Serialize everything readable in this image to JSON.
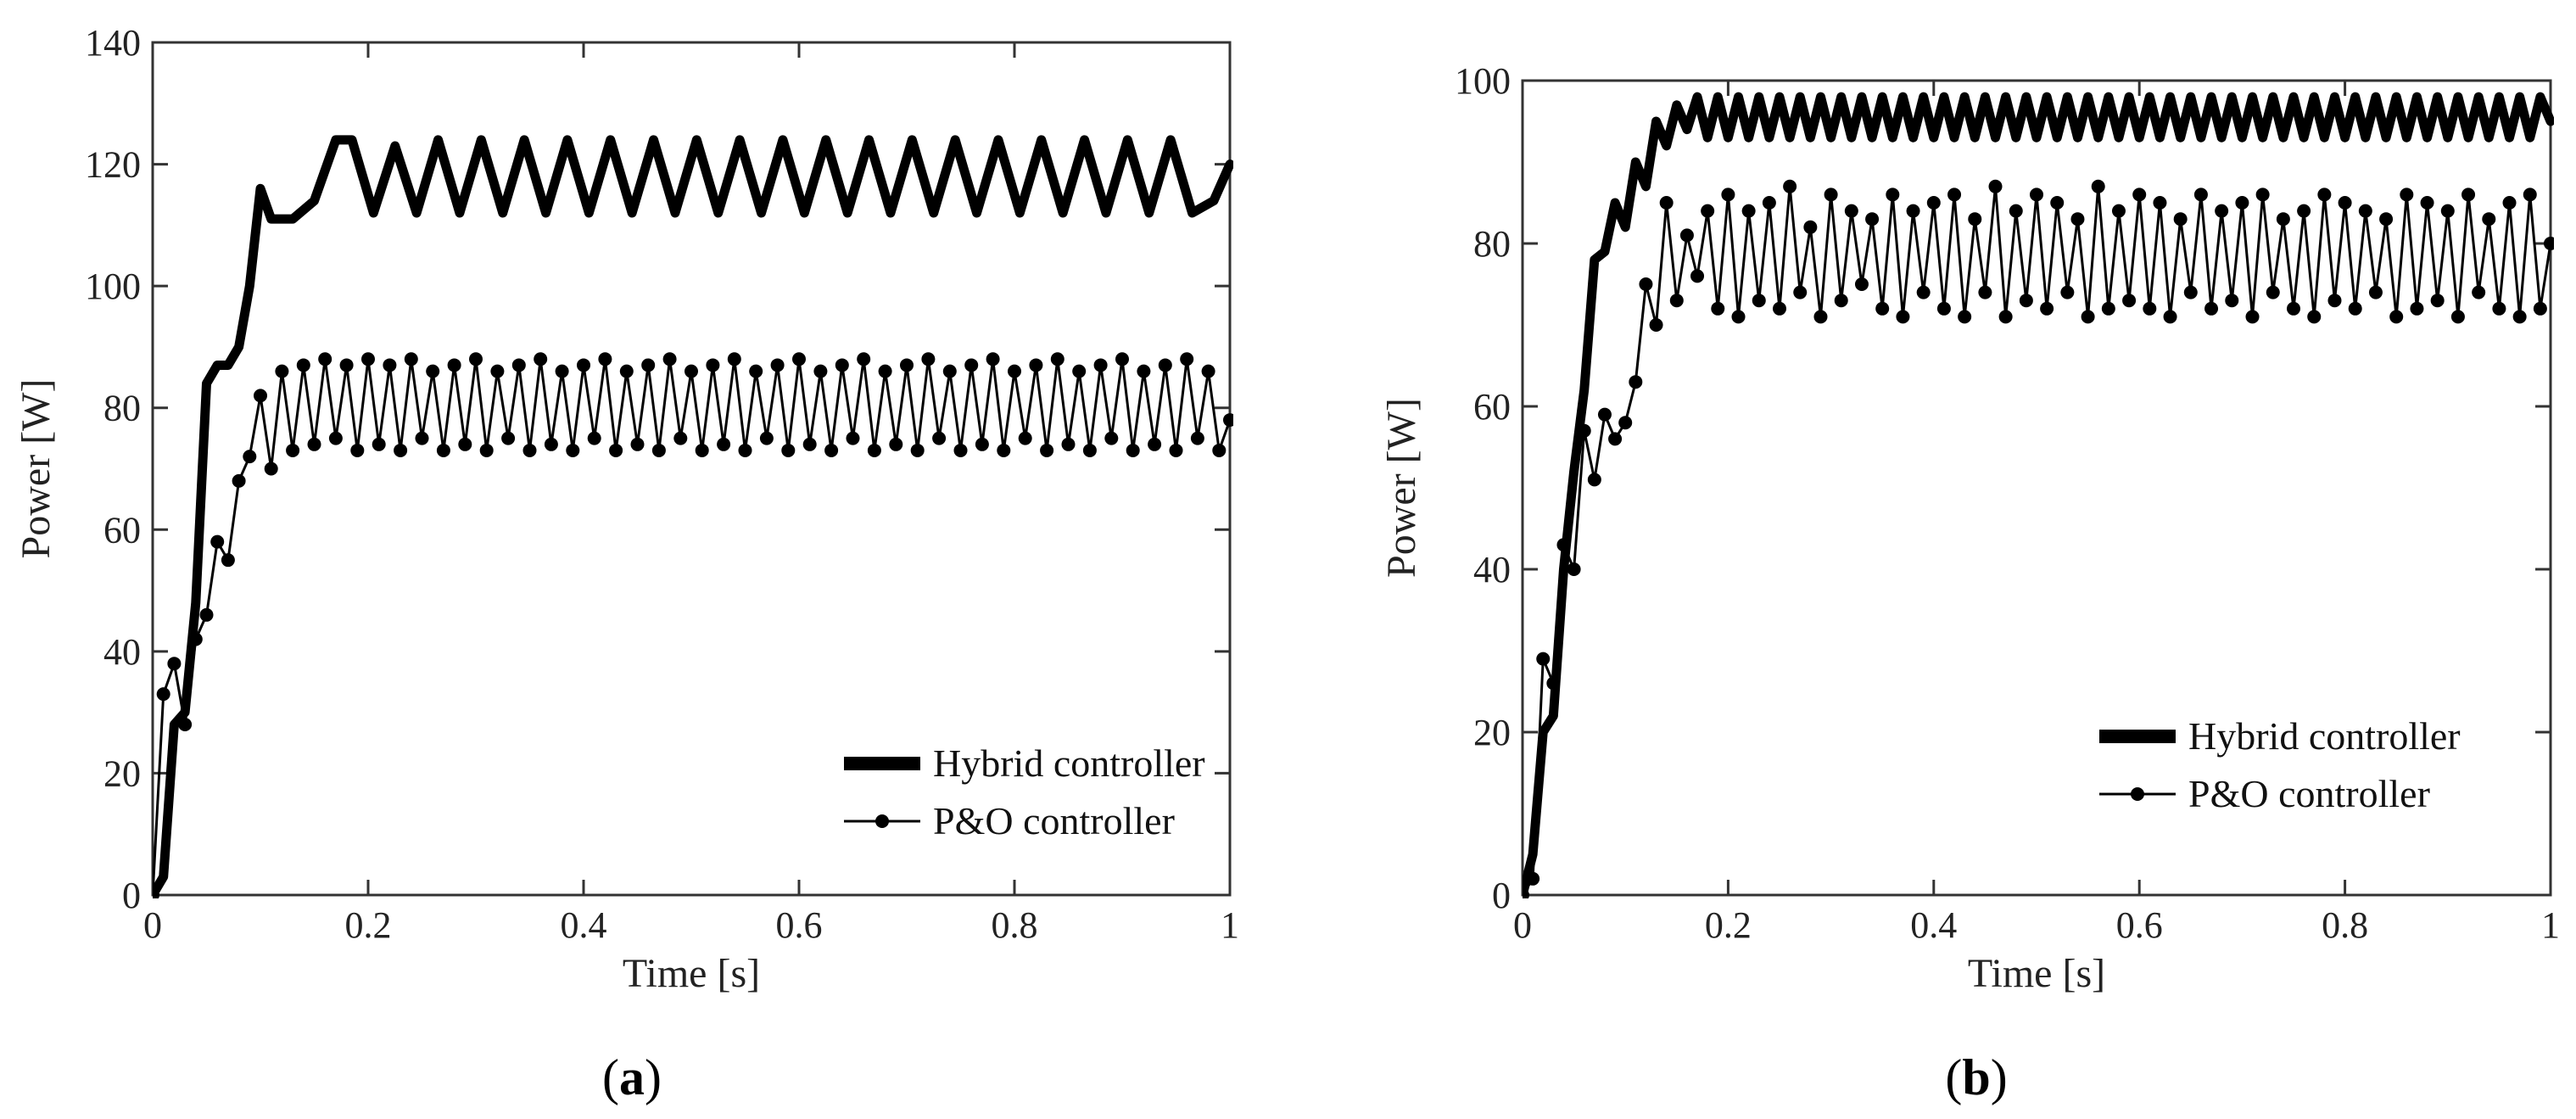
{
  "panels": [
    {
      "label_open": "(",
      "label_letter": "a",
      "label_close": ")",
      "chart_data": {
        "type": "line",
        "title": "",
        "xlabel": "Time [s]",
        "ylabel": "Power [W]",
        "xlim": [
          0,
          1
        ],
        "ylim": [
          0,
          140
        ],
        "xticks": [
          0,
          0.2,
          0.4,
          0.6,
          0.8,
          1
        ],
        "xtick_labels": [
          "0",
          "0.2",
          "0.4",
          "0.6",
          "0.8",
          "1"
        ],
        "yticks": [
          0,
          20,
          40,
          60,
          80,
          100,
          120,
          140
        ],
        "ytick_labels": [
          "0",
          "20",
          "40",
          "60",
          "80",
          "100",
          "120",
          "140"
        ],
        "grid": false,
        "legend_position": "lower-right",
        "series": [
          {
            "name": "Hybrid controller",
            "style": "thick",
            "x": [
              0,
              0.01,
              0.02,
              0.03,
              0.04,
              0.05,
              0.06,
              0.07,
              0.08,
              0.09,
              0.1,
              0.11,
              0.13,
              0.15,
              0.17,
              0.185,
              0.205,
              0.225,
              0.245,
              0.265,
              0.285,
              0.305,
              0.325,
              0.345,
              0.365,
              0.385,
              0.405,
              0.425,
              0.445,
              0.465,
              0.485,
              0.505,
              0.525,
              0.545,
              0.565,
              0.585,
              0.605,
              0.625,
              0.645,
              0.665,
              0.685,
              0.705,
              0.725,
              0.745,
              0.765,
              0.785,
              0.805,
              0.825,
              0.845,
              0.865,
              0.885,
              0.905,
              0.925,
              0.945,
              0.965,
              0.985,
              1.0
            ],
            "y": [
              0,
              3,
              28,
              30,
              48,
              84,
              87,
              87,
              90,
              100,
              116,
              111,
              111,
              114,
              124,
              124,
              112,
              123,
              112,
              124,
              112,
              124,
              112,
              124,
              112,
              124,
              112,
              124,
              112,
              124,
              112,
              124,
              112,
              124,
              112,
              124,
              112,
              124,
              112,
              124,
              112,
              124,
              112,
              124,
              112,
              124,
              112,
              124,
              112,
              124,
              112,
              124,
              112,
              124,
              112,
              114,
              120
            ]
          },
          {
            "name": "P&O controller",
            "style": "dotted-marker",
            "x": [
              0,
              0.01,
              0.02,
              0.03,
              0.04,
              0.05,
              0.06,
              0.07,
              0.08,
              0.09,
              0.1,
              0.11,
              0.12,
              0.13,
              0.14,
              0.15,
              0.16,
              0.17,
              0.18,
              0.19,
              0.2,
              0.21,
              0.22,
              0.23,
              0.24,
              0.25,
              0.26,
              0.27,
              0.28,
              0.29,
              0.3,
              0.31,
              0.32,
              0.33,
              0.34,
              0.35,
              0.36,
              0.37,
              0.38,
              0.39,
              0.4,
              0.41,
              0.42,
              0.43,
              0.44,
              0.45,
              0.46,
              0.47,
              0.48,
              0.49,
              0.5,
              0.51,
              0.52,
              0.53,
              0.54,
              0.55,
              0.56,
              0.57,
              0.58,
              0.59,
              0.6,
              0.61,
              0.62,
              0.63,
              0.64,
              0.65,
              0.66,
              0.67,
              0.68,
              0.69,
              0.7,
              0.71,
              0.72,
              0.73,
              0.74,
              0.75,
              0.76,
              0.77,
              0.78,
              0.79,
              0.8,
              0.81,
              0.82,
              0.83,
              0.84,
              0.85,
              0.86,
              0.87,
              0.88,
              0.89,
              0.9,
              0.91,
              0.92,
              0.93,
              0.94,
              0.95,
              0.96,
              0.97,
              0.98,
              0.99,
              1.0
            ],
            "y": [
              0,
              33,
              38,
              28,
              42,
              46,
              58,
              55,
              68,
              72,
              82,
              70,
              86,
              73,
              87,
              74,
              88,
              75,
              87,
              73,
              88,
              74,
              87,
              73,
              88,
              75,
              86,
              73,
              87,
              74,
              88,
              73,
              86,
              75,
              87,
              73,
              88,
              74,
              86,
              73,
              87,
              75,
              88,
              73,
              86,
              74,
              87,
              73,
              88,
              75,
              86,
              73,
              87,
              74,
              88,
              73,
              86,
              75,
              87,
              73,
              88,
              74,
              86,
              73,
              87,
              75,
              88,
              73,
              86,
              74,
              87,
              73,
              88,
              75,
              86,
              73,
              87,
              74,
              88,
              73,
              86,
              75,
              87,
              73,
              88,
              74,
              86,
              73,
              87,
              75,
              88,
              73,
              86,
              74,
              87,
              73,
              88,
              75,
              86,
              73,
              78
            ]
          }
        ]
      }
    },
    {
      "label_open": "(",
      "label_letter": "b",
      "label_close": ")",
      "chart_data": {
        "type": "line",
        "title": "",
        "xlabel": "Time [s]",
        "ylabel": "Power [W]",
        "xlim": [
          0,
          1
        ],
        "ylim": [
          0,
          100
        ],
        "xticks": [
          0,
          0.2,
          0.4,
          0.6,
          0.8,
          1
        ],
        "xtick_labels": [
          "0",
          "0.2",
          "0.4",
          "0.6",
          "0.8",
          "1"
        ],
        "yticks": [
          0,
          20,
          40,
          60,
          80,
          100
        ],
        "ytick_labels": [
          "0",
          "20",
          "40",
          "60",
          "80",
          "100"
        ],
        "grid": false,
        "legend_position": "lower-right",
        "series": [
          {
            "name": "Hybrid controller",
            "style": "thick",
            "x": [
              0,
              0.01,
              0.02,
              0.03,
              0.04,
              0.05,
              0.06,
              0.07,
              0.08,
              0.09,
              0.1,
              0.11,
              0.12,
              0.13,
              0.14,
              0.15,
              0.16,
              0.17,
              0.18,
              0.19,
              0.2,
              0.21,
              0.22,
              0.23,
              0.24,
              0.25,
              0.26,
              0.27,
              0.28,
              0.29,
              0.3,
              0.31,
              0.32,
              0.33,
              0.34,
              0.35,
              0.36,
              0.37,
              0.38,
              0.39,
              0.4,
              0.41,
              0.42,
              0.43,
              0.44,
              0.45,
              0.46,
              0.47,
              0.48,
              0.49,
              0.5,
              0.51,
              0.52,
              0.53,
              0.54,
              0.55,
              0.56,
              0.57,
              0.58,
              0.59,
              0.6,
              0.61,
              0.62,
              0.63,
              0.64,
              0.65,
              0.66,
              0.67,
              0.68,
              0.69,
              0.7,
              0.71,
              0.72,
              0.73,
              0.74,
              0.75,
              0.76,
              0.77,
              0.78,
              0.79,
              0.8,
              0.81,
              0.82,
              0.83,
              0.84,
              0.85,
              0.86,
              0.87,
              0.88,
              0.89,
              0.9,
              0.91,
              0.92,
              0.93,
              0.94,
              0.95,
              0.96,
              0.97,
              0.98,
              0.99,
              1.0
            ],
            "y": [
              0,
              5,
              20,
              22,
              40,
              52,
              62,
              78,
              79,
              85,
              82,
              90,
              87,
              95,
              92,
              97,
              94,
              98,
              93,
              98,
              93,
              98,
              93,
              98,
              93,
              98,
              93,
              98,
              93,
              98,
              93,
              98,
              93,
              98,
              93,
              98,
              93,
              98,
              93,
              98,
              93,
              98,
              93,
              98,
              93,
              98,
              93,
              98,
              93,
              98,
              93,
              98,
              93,
              98,
              93,
              98,
              93,
              98,
              93,
              98,
              93,
              98,
              93,
              98,
              93,
              98,
              93,
              98,
              93,
              98,
              93,
              98,
              93,
              98,
              93,
              98,
              93,
              98,
              93,
              98,
              93,
              98,
              93,
              98,
              93,
              98,
              93,
              98,
              93,
              98,
              93,
              98,
              93,
              98,
              93,
              98,
              93,
              98,
              93,
              98,
              95
            ]
          },
          {
            "name": "P&O controller",
            "style": "dotted-marker",
            "x": [
              0,
              0.01,
              0.02,
              0.03,
              0.04,
              0.05,
              0.06,
              0.07,
              0.08,
              0.09,
              0.1,
              0.11,
              0.12,
              0.13,
              0.14,
              0.15,
              0.16,
              0.17,
              0.18,
              0.19,
              0.2,
              0.21,
              0.22,
              0.23,
              0.24,
              0.25,
              0.26,
              0.27,
              0.28,
              0.29,
              0.3,
              0.31,
              0.32,
              0.33,
              0.34,
              0.35,
              0.36,
              0.37,
              0.38,
              0.39,
              0.4,
              0.41,
              0.42,
              0.43,
              0.44,
              0.45,
              0.46,
              0.47,
              0.48,
              0.49,
              0.5,
              0.51,
              0.52,
              0.53,
              0.54,
              0.55,
              0.56,
              0.57,
              0.58,
              0.59,
              0.6,
              0.61,
              0.62,
              0.63,
              0.64,
              0.65,
              0.66,
              0.67,
              0.68,
              0.69,
              0.7,
              0.71,
              0.72,
              0.73,
              0.74,
              0.75,
              0.76,
              0.77,
              0.78,
              0.79,
              0.8,
              0.81,
              0.82,
              0.83,
              0.84,
              0.85,
              0.86,
              0.87,
              0.88,
              0.89,
              0.9,
              0.91,
              0.92,
              0.93,
              0.94,
              0.95,
              0.96,
              0.97,
              0.98,
              0.99,
              1.0
            ],
            "y": [
              0,
              2,
              29,
              26,
              43,
              40,
              57,
              51,
              59,
              56,
              58,
              63,
              75,
              70,
              85,
              73,
              81,
              76,
              84,
              72,
              86,
              71,
              84,
              73,
              85,
              72,
              87,
              74,
              82,
              71,
              86,
              73,
              84,
              75,
              83,
              72,
              86,
              71,
              84,
              74,
              85,
              72,
              86,
              71,
              83,
              74,
              87,
              71,
              84,
              73,
              86,
              72,
              85,
              74,
              83,
              71,
              87,
              72,
              84,
              73,
              86,
              72,
              85,
              71,
              83,
              74,
              86,
              72,
              84,
              73,
              85,
              71,
              86,
              74,
              83,
              72,
              84,
              71,
              86,
              73,
              85,
              72,
              84,
              74,
              83,
              71,
              86,
              72,
              85,
              73,
              84,
              71,
              86,
              74,
              83,
              72,
              85,
              71,
              86,
              72,
              80
            ]
          }
        ]
      }
    }
  ]
}
